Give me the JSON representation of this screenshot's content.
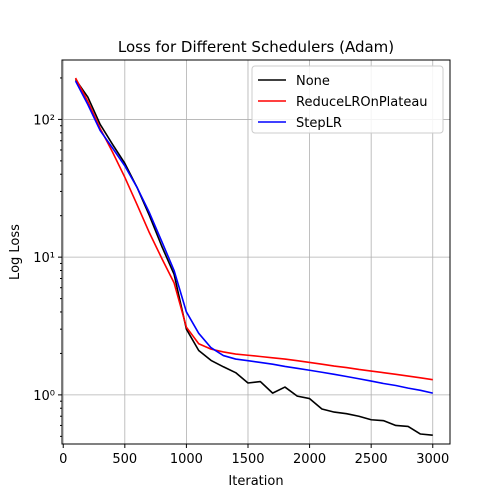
{
  "chart_data": {
    "type": "line",
    "title": "Loss for Different Schedulers (Adam)",
    "xlabel": "Iteration",
    "ylabel": "Log Loss",
    "yscale": "log",
    "xlim": [
      -10,
      3140
    ],
    "ylim": [
      0.44,
      270
    ],
    "xticks": [
      0,
      500,
      1000,
      1500,
      2000,
      2500,
      3000
    ],
    "xtick_labels": [
      "0",
      "500",
      "1000",
      "1500",
      "2000",
      "2500",
      "3000"
    ],
    "yticks": [
      1,
      10,
      100
    ],
    "ytick_labels": [
      "10⁰",
      "10¹",
      "10²"
    ],
    "grid": true,
    "legend_position": "top-right",
    "x": [
      100,
      200,
      300,
      400,
      500,
      600,
      700,
      800,
      900,
      1000,
      1100,
      1200,
      1300,
      1400,
      1500,
      1600,
      1700,
      1800,
      1900,
      2000,
      2100,
      2200,
      2300,
      2400,
      2500,
      2600,
      2700,
      2800,
      2900,
      3000
    ],
    "series": [
      {
        "name": "None",
        "color": "#000000",
        "values": [
          195,
          145,
          92,
          66,
          48,
          32,
          20,
          12,
          7.5,
          3.0,
          2.1,
          1.78,
          1.6,
          1.45,
          1.22,
          1.25,
          1.03,
          1.14,
          0.98,
          0.94,
          0.79,
          0.75,
          0.73,
          0.7,
          0.66,
          0.65,
          0.6,
          0.59,
          0.52,
          0.51
        ]
      },
      {
        "name": "ReduceLROnPlateau",
        "color": "#ff0000",
        "values": [
          200,
          135,
          86,
          58,
          38,
          24,
          15,
          9.8,
          6.5,
          3.1,
          2.35,
          2.15,
          2.05,
          1.98,
          1.94,
          1.9,
          1.86,
          1.82,
          1.77,
          1.72,
          1.67,
          1.62,
          1.58,
          1.53,
          1.49,
          1.45,
          1.41,
          1.37,
          1.33,
          1.29
        ]
      },
      {
        "name": "StepLR",
        "color": "#0000ff",
        "values": [
          190,
          128,
          83,
          62,
          46,
          32,
          21,
          13,
          8.0,
          4.0,
          2.8,
          2.2,
          1.93,
          1.82,
          1.77,
          1.72,
          1.67,
          1.61,
          1.56,
          1.51,
          1.46,
          1.41,
          1.36,
          1.31,
          1.26,
          1.21,
          1.17,
          1.12,
          1.08,
          1.03
        ]
      }
    ]
  }
}
